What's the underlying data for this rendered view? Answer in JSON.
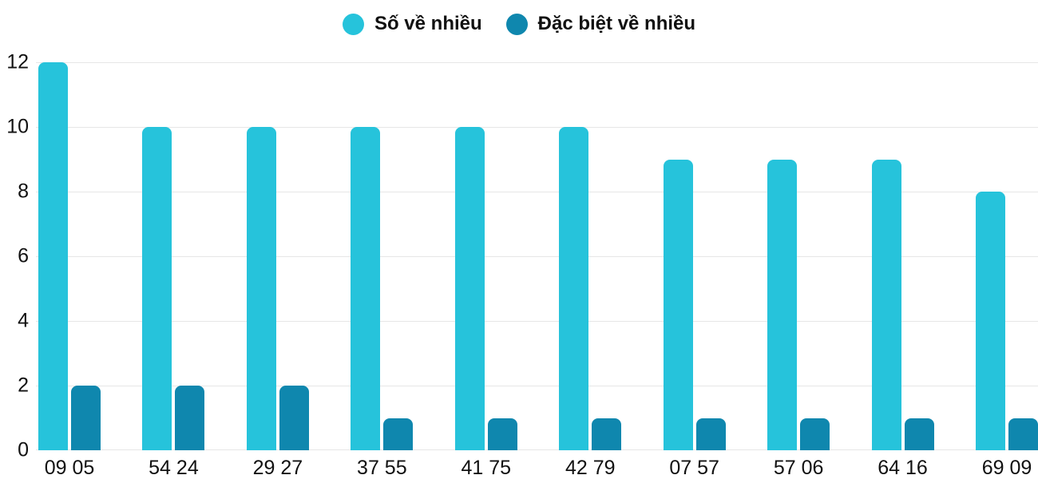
{
  "chart_data": {
    "type": "bar",
    "title": "",
    "categories": [
      "09 05",
      "54 24",
      "29 27",
      "37 55",
      "41 75",
      "42 79",
      "07 57",
      "57 06",
      "64 16",
      "69 09"
    ],
    "series": [
      {
        "name": "Số về nhiều",
        "color": "#26C3DB",
        "values": [
          12,
          10,
          10,
          10,
          10,
          10,
          9,
          9,
          9,
          8
        ]
      },
      {
        "name": "Đặc biệt về nhiều",
        "color": "#0F87AE",
        "values": [
          2,
          2,
          2,
          1,
          1,
          1,
          1,
          1,
          1,
          1
        ]
      }
    ],
    "xlabel": "",
    "ylabel": "",
    "ylim": [
      0,
      12
    ],
    "yticks": [
      0,
      2,
      4,
      6,
      8,
      10,
      12
    ],
    "grid": true,
    "legend_position": "top-center"
  },
  "colors": {
    "background": "#ffffff",
    "gridline": "#e6e6e6",
    "text": "#111111",
    "series_primary": "#26C3DB",
    "series_special": "#0F87AE"
  }
}
